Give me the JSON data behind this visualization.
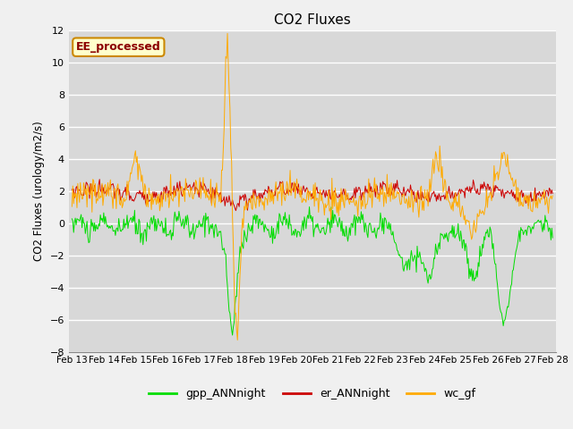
{
  "title": "CO2 Fluxes",
  "ylabel": "CO2 Fluxes (urology/m2/s)",
  "ylim": [
    -8,
    12
  ],
  "yticks": [
    -8,
    -6,
    -4,
    -2,
    0,
    2,
    4,
    6,
    8,
    10,
    12
  ],
  "fig_bg_color": "#f0f0f0",
  "plot_bg_color": "#d8d8d8",
  "ee_label": "EE_processed",
  "ee_label_bg": "#ffffcc",
  "ee_label_border": "#cc8800",
  "ee_label_text_color": "#8b0000",
  "legend_entries": [
    "gpp_ANNnight",
    "er_ANNnight",
    "wc_gf"
  ],
  "line_colors": [
    "#00dd00",
    "#cc0000",
    "#ffaa00"
  ],
  "num_points": 576,
  "date_labels": [
    "Feb 13",
    "Feb 14",
    "Feb 15",
    "Feb 16",
    "Feb 17",
    "Feb 18",
    "Feb 19",
    "Feb 20",
    "Feb 21",
    "Feb 22",
    "Feb 23",
    "Feb 24",
    "Feb 25",
    "Feb 26",
    "Feb 27",
    "Feb 28"
  ],
  "seed": 42
}
